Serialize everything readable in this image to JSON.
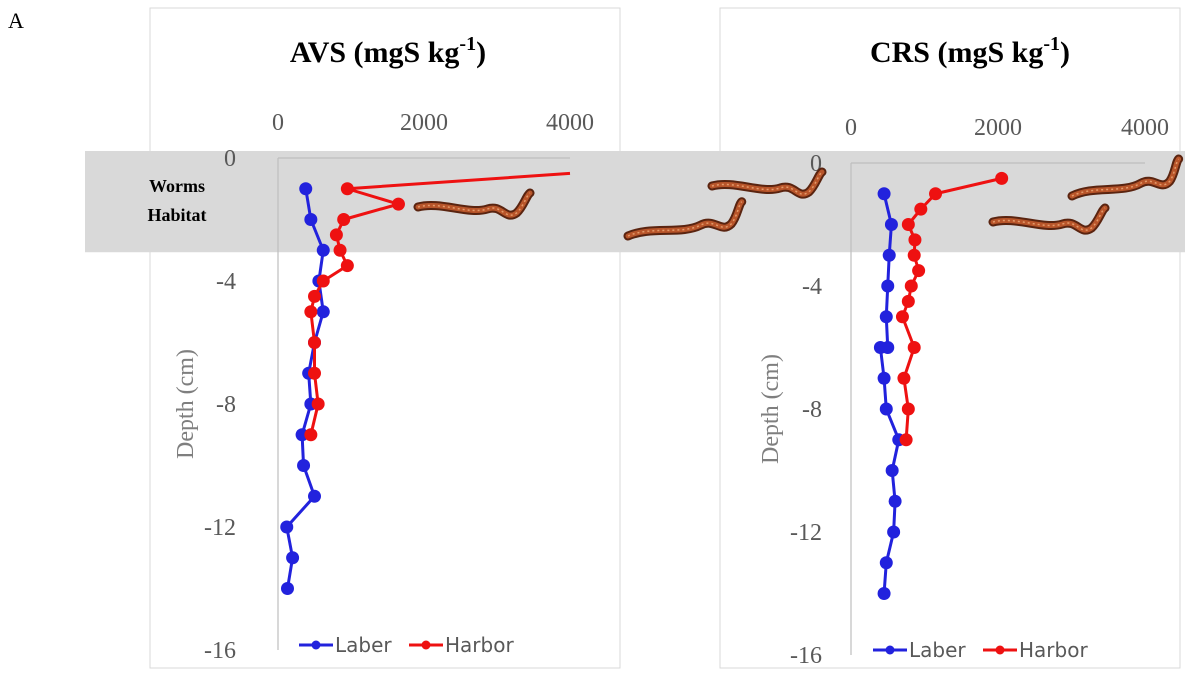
{
  "figure": {
    "panel_label": "A",
    "habitat_label_line1": "Worms",
    "habitat_label_line2": "Habitat",
    "habitat_depth_range": [
      0,
      -3
    ],
    "colors": {
      "laber": "#2222dd",
      "harbor": "#ee1111",
      "habitat": "#d9d9d9"
    },
    "icons": [
      "worm-icon"
    ]
  },
  "chart_data": [
    {
      "type": "line",
      "title": "AVS (mgS kg",
      "title_superscript": "-1",
      "title_close": ")",
      "xlabel": "",
      "ylabel": "Depth (cm)",
      "xlim": [
        0,
        4000
      ],
      "x_ticks": [
        "0",
        "2000",
        "4000"
      ],
      "ylim": [
        -16,
        0
      ],
      "y_ticks": [
        "0",
        "-4",
        "-8",
        "-12",
        "-16"
      ],
      "legend_position": "bottom-center",
      "series": [
        {
          "name": "Laber",
          "color": "#2222dd",
          "x": [
            380,
            450,
            620,
            560,
            620,
            500,
            420,
            450,
            330,
            350,
            500,
            120,
            200,
            130
          ],
          "y": [
            -1,
            -2,
            -3,
            -4,
            -5,
            -6,
            -7,
            -8,
            -9,
            -10,
            -11,
            -12,
            -13,
            -14
          ]
        },
        {
          "name": "Harbor",
          "color": "#ee1111",
          "x": [
            4000,
            950,
            1650,
            900,
            800,
            850,
            950,
            620,
            500,
            450,
            500,
            500,
            550,
            450
          ],
          "y": [
            -0.5,
            -1,
            -1.5,
            -2,
            -2.5,
            -3,
            -3.5,
            -4,
            -4.5,
            -5,
            -6,
            -7,
            -8,
            -9
          ]
        }
      ]
    },
    {
      "type": "line",
      "title": "CRS (mgS kg",
      "title_superscript": "-1",
      "title_close": ")",
      "xlabel": "",
      "ylabel": "Depth (cm)",
      "xlim": [
        0,
        4000
      ],
      "x_ticks": [
        "0",
        "2000",
        "4000"
      ],
      "ylim": [
        -16,
        0
      ],
      "y_ticks": [
        "0",
        "-4",
        "-8",
        "-12",
        "-16"
      ],
      "legend_position": "bottom-center",
      "series": [
        {
          "name": "Laber",
          "color": "#2222dd",
          "x": [
            450,
            550,
            520,
            500,
            480,
            500,
            400,
            450,
            480,
            650,
            560,
            600,
            580,
            480,
            450
          ],
          "y": [
            -1,
            -2,
            -3,
            -4,
            -5,
            -6,
            -6,
            -7,
            -8,
            -9,
            -10,
            -11,
            -12,
            -13,
            -14
          ]
        },
        {
          "name": "Harbor",
          "color": "#ee1111",
          "x": [
            2050,
            1150,
            950,
            780,
            870,
            860,
            920,
            820,
            780,
            700,
            860,
            720,
            780,
            750
          ],
          "y": [
            -0.5,
            -1,
            -1.5,
            -2,
            -2.5,
            -3,
            -3.5,
            -4,
            -4.5,
            -5,
            -6,
            -7,
            -8,
            -9
          ]
        }
      ]
    }
  ]
}
